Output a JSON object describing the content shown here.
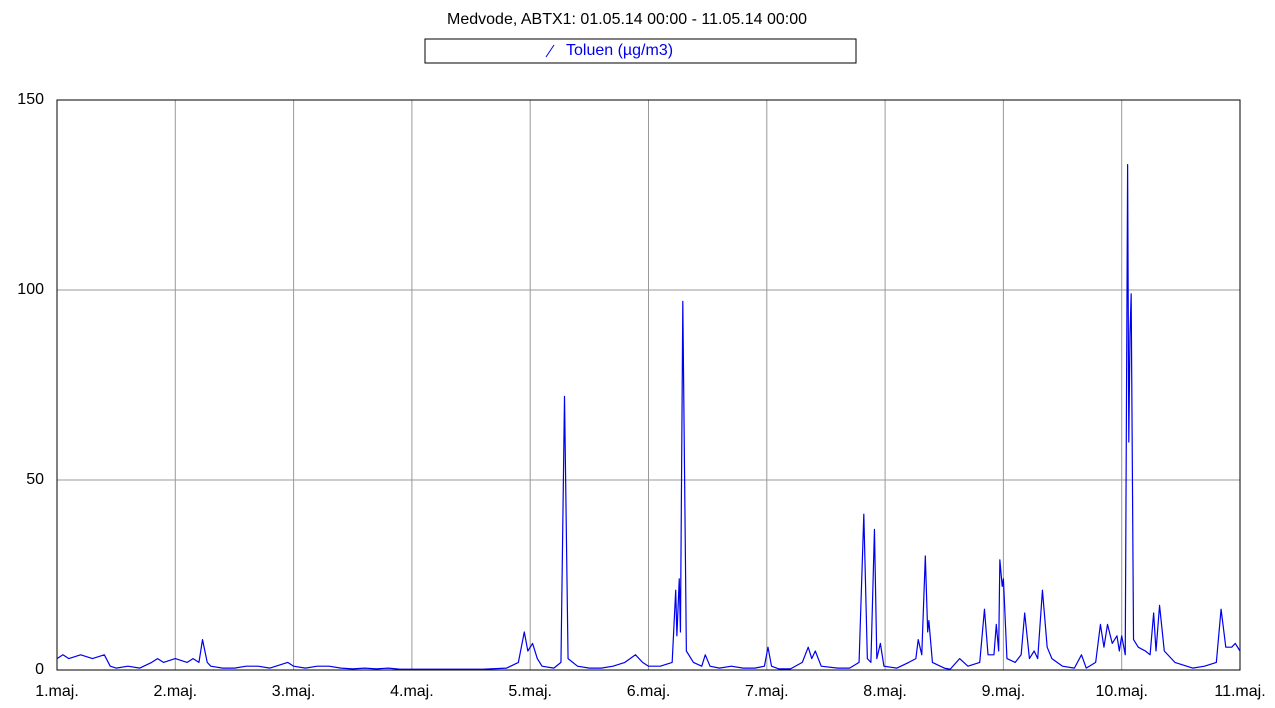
{
  "chart_data": {
    "type": "line",
    "title": "Medvode, ABTX1: 01.05.14 00:00 - 11.05.14 00:00",
    "x": [
      1.0,
      1.05,
      1.1,
      1.2,
      1.3,
      1.4,
      1.45,
      1.5,
      1.6,
      1.7,
      1.8,
      1.85,
      1.9,
      2.0,
      2.1,
      2.15,
      2.2,
      2.23,
      2.27,
      2.3,
      2.4,
      2.5,
      2.6,
      2.7,
      2.8,
      2.95,
      3.0,
      3.1,
      3.2,
      3.3,
      3.4,
      3.5,
      3.6,
      3.7,
      3.8,
      3.9,
      4.0,
      4.2,
      4.4,
      4.6,
      4.8,
      4.9,
      4.95,
      4.98,
      5.02,
      5.06,
      5.1,
      5.2,
      5.26,
      5.29,
      5.32,
      5.4,
      5.5,
      5.6,
      5.7,
      5.8,
      5.89,
      5.95,
      6.0,
      6.1,
      6.2,
      6.23,
      6.24,
      6.26,
      6.27,
      6.29,
      6.32,
      6.38,
      6.45,
      6.48,
      6.52,
      6.6,
      6.7,
      6.8,
      6.9,
      6.98,
      7.01,
      7.04,
      7.1,
      7.2,
      7.3,
      7.35,
      7.38,
      7.41,
      7.46,
      7.6,
      7.7,
      7.78,
      7.82,
      7.85,
      7.88,
      7.91,
      7.93,
      7.96,
      7.99,
      8.1,
      8.2,
      8.26,
      8.28,
      8.31,
      8.34,
      8.36,
      8.37,
      8.4,
      8.5,
      8.55,
      8.63,
      8.7,
      8.8,
      8.84,
      8.87,
      8.92,
      8.94,
      8.96,
      8.97,
      8.99,
      9.0,
      9.03,
      9.1,
      9.15,
      9.18,
      9.22,
      9.26,
      9.29,
      9.33,
      9.37,
      9.41,
      9.5,
      9.6,
      9.66,
      9.7,
      9.78,
      9.82,
      9.85,
      9.88,
      9.92,
      9.96,
      9.98,
      10.0,
      10.03,
      10.05,
      10.06,
      10.07,
      10.08,
      10.1,
      10.14,
      10.2,
      10.24,
      10.27,
      10.29,
      10.32,
      10.36,
      10.45,
      10.6,
      10.7,
      10.8,
      10.84,
      10.88,
      10.93,
      10.96,
      11.0
    ],
    "series": [
      {
        "name": "Toluen (µg/m3)",
        "color": "#0000ee",
        "values": [
          3,
          4,
          3,
          4,
          3,
          4,
          1,
          0.5,
          1,
          0.5,
          2,
          3,
          2,
          3,
          2,
          3,
          2,
          8,
          2,
          1,
          0.5,
          0.5,
          1,
          1,
          0.5,
          2,
          1,
          0.5,
          1,
          1,
          0.5,
          0.3,
          0.5,
          0.3,
          0.5,
          0.2,
          0.2,
          0.2,
          0.2,
          0.2,
          0.5,
          2,
          10,
          5,
          7,
          3,
          1,
          0.5,
          2,
          72,
          3,
          1,
          0.5,
          0.5,
          1,
          2,
          4,
          2,
          1,
          1,
          2,
          21,
          9,
          24,
          10,
          97,
          5,
          2,
          1,
          4,
          1,
          0.5,
          1,
          0.5,
          0.5,
          1,
          6,
          1,
          0.3,
          0.3,
          2,
          6,
          3,
          5,
          1,
          0.5,
          0.5,
          2,
          41,
          3,
          2,
          37,
          3,
          7,
          1,
          0.5,
          2,
          3,
          8,
          4,
          30,
          10,
          13,
          2,
          0.5,
          0.2,
          3,
          1,
          2,
          16,
          4,
          4,
          12,
          5,
          29,
          22,
          24,
          3,
          2,
          4,
          15,
          3,
          5,
          3,
          21,
          6,
          3,
          1,
          0.5,
          4,
          0.5,
          2,
          12,
          6,
          12,
          7,
          9,
          5,
          9,
          4,
          133,
          60,
          88,
          99,
          8,
          6,
          5,
          4,
          15,
          5,
          17,
          5,
          2,
          0.5,
          1,
          2,
          16,
          6,
          6,
          7,
          5
        ]
      }
    ],
    "xlim": [
      1,
      11
    ],
    "xticks": [
      {
        "value": 1,
        "label": "1.maj."
      },
      {
        "value": 2,
        "label": "2.maj."
      },
      {
        "value": 3,
        "label": "3.maj."
      },
      {
        "value": 4,
        "label": "4.maj."
      },
      {
        "value": 5,
        "label": "5.maj."
      },
      {
        "value": 6,
        "label": "6.maj."
      },
      {
        "value": 7,
        "label": "7.maj."
      },
      {
        "value": 8,
        "label": "8.maj."
      },
      {
        "value": 9,
        "label": "9.maj."
      },
      {
        "value": 10,
        "label": "10.maj."
      },
      {
        "value": 11,
        "label": "11.maj."
      }
    ],
    "ylim": [
      0,
      150
    ],
    "yticks": [
      0,
      50,
      100,
      150
    ],
    "grid": true
  }
}
